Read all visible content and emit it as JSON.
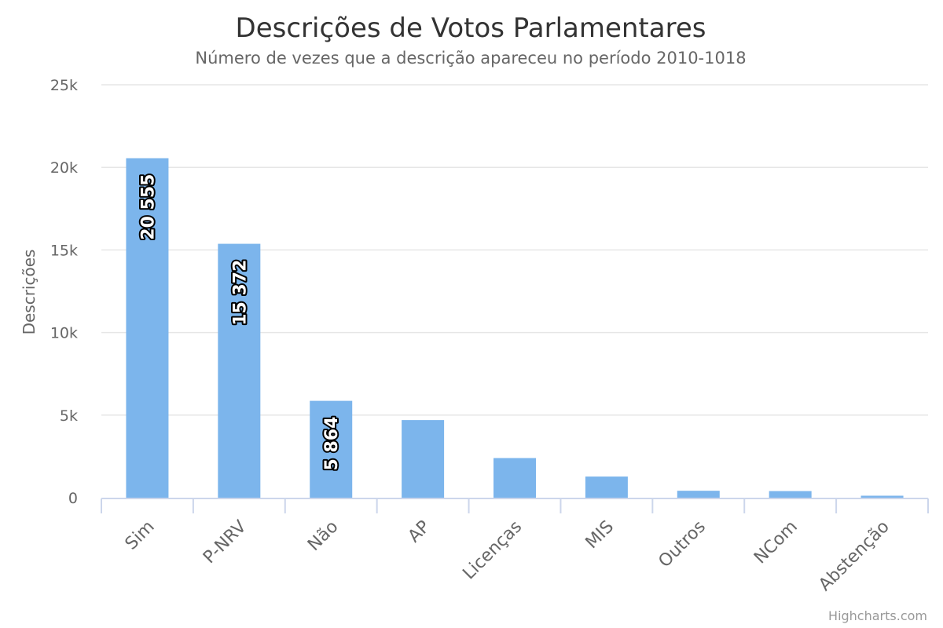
{
  "chart_data": {
    "type": "bar",
    "title": "Descrições de Votos Parlamentares",
    "subtitle": "Número de vezes que a descrição apareceu no período 2010-1018",
    "xlabel": "",
    "ylabel": "Descrições",
    "categories": [
      "Sim",
      "P-NRV",
      "Não",
      "AP",
      "Licenças",
      "MIS",
      "Outros",
      "NCom",
      "Abstenção"
    ],
    "values": [
      20555,
      15372,
      5864,
      4700,
      2400,
      1280,
      420,
      400,
      120
    ],
    "data_labels": [
      "20 555",
      "15 372",
      "5 864",
      "",
      "",
      "",
      "",
      "",
      ""
    ],
    "ylim": [
      0,
      25000
    ],
    "yticks": [
      0,
      5000,
      10000,
      15000,
      20000,
      25000
    ],
    "ytick_labels": [
      "0",
      "5k",
      "10k",
      "15k",
      "20k",
      "25k"
    ],
    "grid": true,
    "legend": "none",
    "bar_color": "#7cb5ec"
  },
  "credits": "Highcharts.com"
}
